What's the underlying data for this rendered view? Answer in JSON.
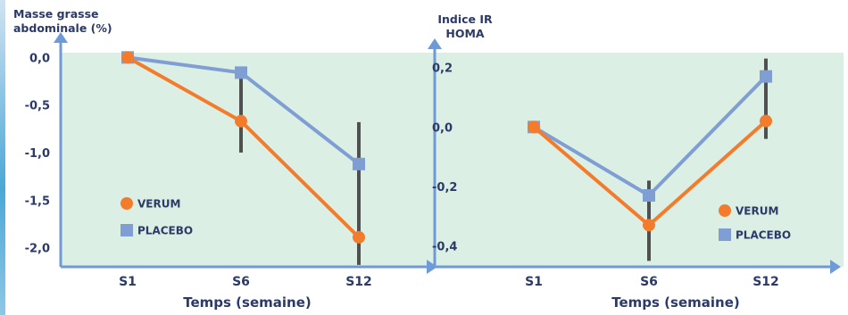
{
  "colors": {
    "panel": "#dcefe4",
    "axis": "#6f9ad8",
    "verum": "#f37c2c",
    "placebo": "#7f9ed4",
    "errorbar": "#505050",
    "text": "#2b3a66"
  },
  "chart_data": [
    {
      "type": "line",
      "ylabel_lines": [
        "Masse grasse",
        "abdominale (%)"
      ],
      "xlabel": "Temps (semaine)",
      "categories": [
        "S1",
        "S6",
        "S12"
      ],
      "ylim": [
        -2.2,
        0.05
      ],
      "yticks": [
        0.0,
        -0.5,
        -1.0,
        -1.5,
        -2.0
      ],
      "ytick_labels": [
        "0,0",
        "-0,5",
        "-1,0",
        "-1,5",
        "-2,0"
      ],
      "grid": false,
      "legend_position": "left",
      "series": [
        {
          "name": "VERUM",
          "marker": "circle",
          "values": [
            0.0,
            -0.67,
            -1.89
          ]
        },
        {
          "name": "PLACEBO",
          "marker": "square",
          "values": [
            0.0,
            -0.16,
            -1.12
          ]
        }
      ],
      "error_bars": [
        {
          "category": "S6",
          "low": -1.0,
          "high": -0.1
        },
        {
          "category": "S12",
          "low": -2.18,
          "high": -0.68
        }
      ]
    },
    {
      "type": "line",
      "ylabel_lines": [
        "Indice IR",
        "HOMA"
      ],
      "xlabel": "Temps (semaine)",
      "categories": [
        "S1",
        "S6",
        "S12"
      ],
      "ylim": [
        -0.47,
        0.25
      ],
      "yticks": [
        0.2,
        0.0,
        -0.2,
        -0.4
      ],
      "ytick_labels": [
        "0,2",
        "0,0",
        "-0,2",
        "-0,4"
      ],
      "grid": false,
      "legend_position": "bottom-right",
      "series": [
        {
          "name": "VERUM",
          "marker": "circle",
          "values": [
            0.0,
            -0.33,
            0.02
          ]
        },
        {
          "name": "PLACEBO",
          "marker": "square",
          "values": [
            0.0,
            -0.23,
            0.17
          ]
        }
      ],
      "error_bars": [
        {
          "category": "S6",
          "low": -0.45,
          "high": -0.18
        },
        {
          "category": "S12",
          "low": -0.04,
          "high": 0.23
        }
      ]
    }
  ]
}
